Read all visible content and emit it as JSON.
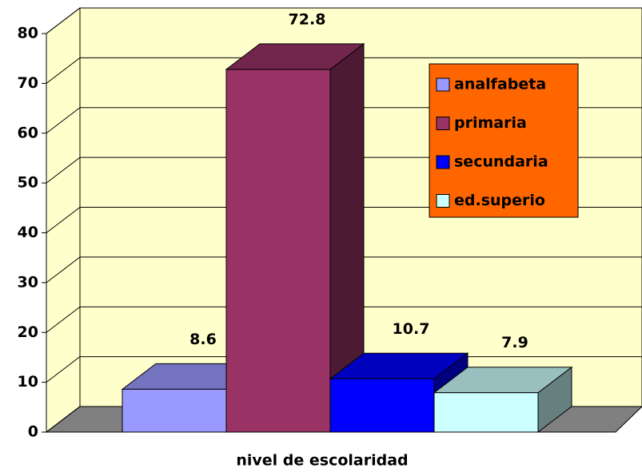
{
  "chart_data": {
    "type": "bar3d",
    "x_label": "nivel de escolaridad",
    "series": [
      {
        "name": "analfabeta",
        "color": "#9999ff",
        "values": [
          8.6
        ]
      },
      {
        "name": "primaria",
        "color": "#993366",
        "values": [
          72.8
        ]
      },
      {
        "name": "secundaria",
        "color": "#0000ff",
        "values": [
          10.7
        ]
      },
      {
        "name": "ed.superio",
        "color": "#ccffff",
        "values": [
          7.9
        ]
      }
    ],
    "ylim": [
      0,
      80
    ],
    "yticks": [
      0,
      10,
      20,
      30,
      40,
      50,
      60,
      70,
      80
    ],
    "grid": true,
    "legend": "upper right",
    "wall_color": "#ffffcc",
    "floor_color": "#808080",
    "legend_color": "#ff6600"
  }
}
